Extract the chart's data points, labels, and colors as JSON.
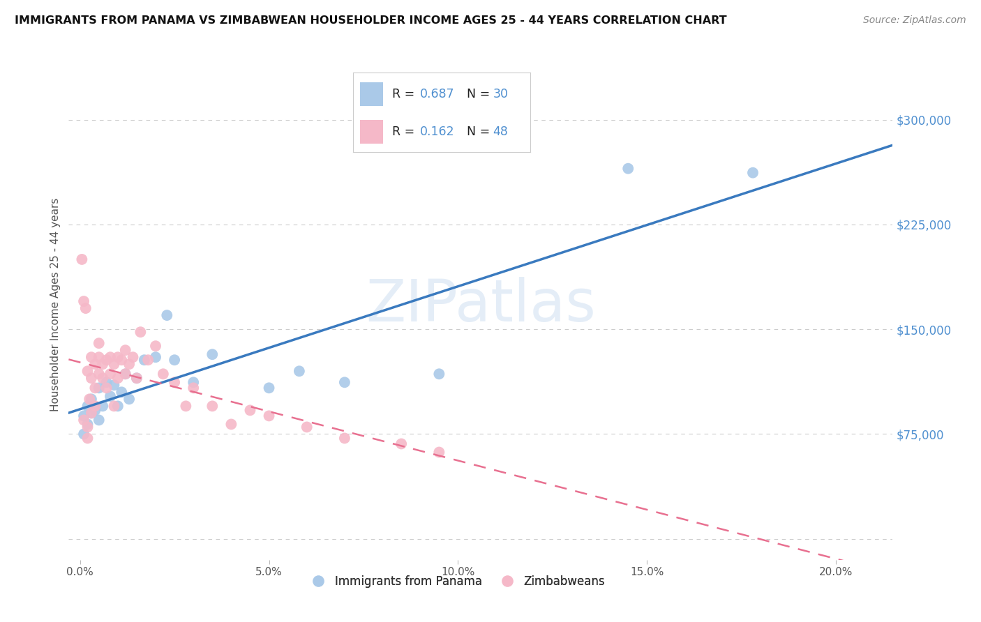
{
  "title": "IMMIGRANTS FROM PANAMA VS ZIMBABWEAN HOUSEHOLDER INCOME AGES 25 - 44 YEARS CORRELATION CHART",
  "source": "Source: ZipAtlas.com",
  "ylabel": "Householder Income Ages 25 - 44 years",
  "xlabel_ticks": [
    0.0,
    0.05,
    0.1,
    0.15,
    0.2
  ],
  "xlabel_labels": [
    "0.0%",
    "",
    "",
    "",
    "20.0%"
  ],
  "yright_ticks": [
    75000,
    150000,
    225000,
    300000
  ],
  "yright_labels": [
    "$75,000",
    "$150,000",
    "$225,000",
    "$300,000"
  ],
  "ylim": [
    -15000,
    350000
  ],
  "xlim": [
    -0.003,
    0.215
  ],
  "watermark": "ZIPatlas",
  "legend_r1": "0.687",
  "legend_n1": "30",
  "legend_r2": "0.162",
  "legend_n2": "48",
  "color_blue": "#aac9e8",
  "color_blue_line": "#3a7abf",
  "color_pink": "#f5b8c8",
  "color_pink_line": "#e87090",
  "color_axis_blue": "#5090d0",
  "background_color": "#ffffff",
  "grid_color": "#cccccc",
  "panama_x": [
    0.001,
    0.001,
    0.002,
    0.002,
    0.003,
    0.003,
    0.004,
    0.005,
    0.005,
    0.006,
    0.007,
    0.008,
    0.009,
    0.01,
    0.011,
    0.012,
    0.013,
    0.015,
    0.017,
    0.02,
    0.023,
    0.025,
    0.03,
    0.035,
    0.05,
    0.058,
    0.07,
    0.095,
    0.145,
    0.178
  ],
  "panama_y": [
    88000,
    75000,
    95000,
    82000,
    90000,
    100000,
    92000,
    85000,
    108000,
    95000,
    112000,
    102000,
    110000,
    95000,
    105000,
    118000,
    100000,
    115000,
    128000,
    130000,
    160000,
    128000,
    112000,
    132000,
    108000,
    120000,
    112000,
    118000,
    265000,
    262000
  ],
  "zimbabwe_x": [
    0.0005,
    0.001,
    0.001,
    0.0015,
    0.002,
    0.002,
    0.002,
    0.0025,
    0.003,
    0.003,
    0.003,
    0.004,
    0.004,
    0.004,
    0.005,
    0.005,
    0.005,
    0.006,
    0.006,
    0.007,
    0.007,
    0.008,
    0.008,
    0.009,
    0.009,
    0.01,
    0.01,
    0.011,
    0.012,
    0.012,
    0.013,
    0.014,
    0.015,
    0.016,
    0.018,
    0.02,
    0.022,
    0.025,
    0.028,
    0.03,
    0.035,
    0.04,
    0.045,
    0.05,
    0.06,
    0.07,
    0.085,
    0.095
  ],
  "zimbabwe_y": [
    200000,
    170000,
    85000,
    165000,
    80000,
    120000,
    72000,
    100000,
    115000,
    130000,
    90000,
    125000,
    108000,
    95000,
    140000,
    118000,
    130000,
    125000,
    115000,
    128000,
    108000,
    130000,
    118000,
    125000,
    95000,
    130000,
    115000,
    128000,
    118000,
    135000,
    125000,
    130000,
    115000,
    148000,
    128000,
    138000,
    118000,
    112000,
    95000,
    108000,
    95000,
    82000,
    92000,
    88000,
    80000,
    72000,
    68000,
    62000
  ]
}
